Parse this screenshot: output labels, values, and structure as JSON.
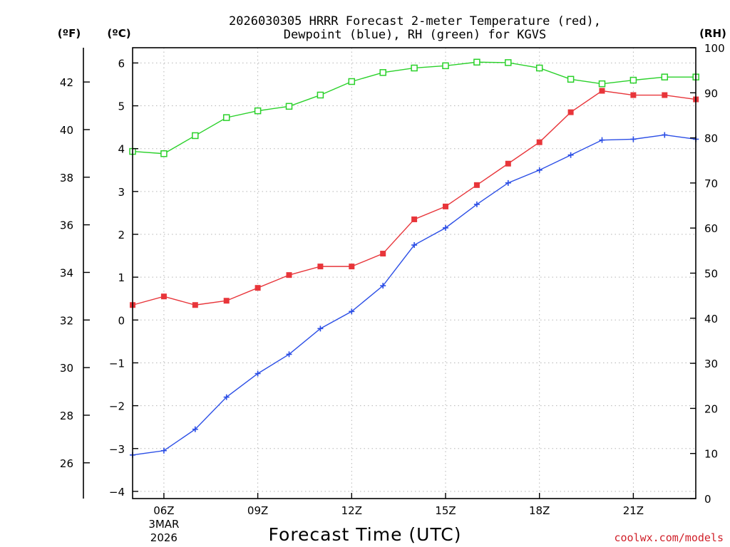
{
  "chart_data": {
    "type": "line",
    "title": [
      "2026030305 HRRR Forecast 2-meter Temperature (red),",
      "Dewpoint (blue), RH (green) for KGVS"
    ],
    "units": {
      "fahrenheit": "(ºF)",
      "celsius": "(ºC)",
      "rh": "(RH)"
    },
    "xlabel": "Forecast Time (UTC)",
    "credit": "coolwx.com/models",
    "x_hours": [
      5,
      6,
      7,
      8,
      9,
      10,
      11,
      12,
      13,
      14,
      15,
      16,
      17,
      18,
      19,
      20,
      21,
      22,
      23
    ],
    "xlim": [
      5,
      23
    ],
    "x_ticks": [
      {
        "hour": 6,
        "label": "06Z",
        "sub": [
          "3MAR",
          "2026"
        ]
      },
      {
        "hour": 9,
        "label": "09Z"
      },
      {
        "hour": 12,
        "label": "12Z"
      },
      {
        "hour": 15,
        "label": "15Z"
      },
      {
        "hour": 18,
        "label": "18Z"
      },
      {
        "hour": 21,
        "label": "21Z"
      }
    ],
    "y_left_celsius": {
      "ylim": [
        -4.2,
        6.35
      ],
      "ticks": [
        "6",
        "5",
        "4",
        "3",
        "2",
        "1",
        "0",
        "−1",
        "−2",
        "−3",
        "−4"
      ],
      "tick_values": [
        6,
        5,
        4,
        3,
        2,
        1,
        0,
        -1,
        -2,
        -3,
        -4
      ]
    },
    "y_left_fahrenheit": {
      "ticks": [
        "42",
        "40",
        "38",
        "36",
        "34",
        "32",
        "30",
        "28",
        "26"
      ],
      "tick_values": [
        42,
        40,
        38,
        36,
        34,
        32,
        30,
        28,
        26
      ]
    },
    "y_right_rh": {
      "ylim": [
        0,
        100
      ],
      "ticks": [
        "100",
        "90",
        "80",
        "70",
        "60",
        "50",
        "40",
        "30",
        "20",
        "10",
        "0"
      ],
      "tick_values": [
        100,
        90,
        80,
        70,
        60,
        50,
        40,
        30,
        20,
        10,
        0
      ]
    },
    "series": [
      {
        "name": "Temperature",
        "axis": "celsius",
        "color": "#e8353a",
        "marker": "filled-square",
        "values": [
          0.35,
          0.55,
          0.35,
          0.45,
          0.75,
          1.05,
          1.25,
          1.25,
          1.55,
          2.35,
          2.65,
          3.15,
          3.65,
          4.15,
          4.85,
          5.35,
          5.25,
          5.25,
          5.15
        ]
      },
      {
        "name": "Dewpoint",
        "axis": "celsius",
        "color": "#2b4ee6",
        "marker": "plus",
        "values": [
          -3.15,
          -3.05,
          -2.55,
          -1.8,
          -1.25,
          -0.8,
          -0.2,
          0.2,
          0.8,
          1.75,
          2.15,
          2.7,
          3.2,
          3.5,
          3.85,
          4.2,
          4.22,
          4.32,
          4.22
        ]
      },
      {
        "name": "RH",
        "axis": "rh",
        "color": "#2ad12a",
        "marker": "open-square",
        "values": [
          77,
          76.5,
          80.5,
          84.5,
          86,
          87,
          89.5,
          92.5,
          94.5,
          95.5,
          96,
          96.8,
          96.7,
          95.5,
          93,
          92,
          92.8,
          93.5,
          93.5
        ]
      }
    ]
  }
}
